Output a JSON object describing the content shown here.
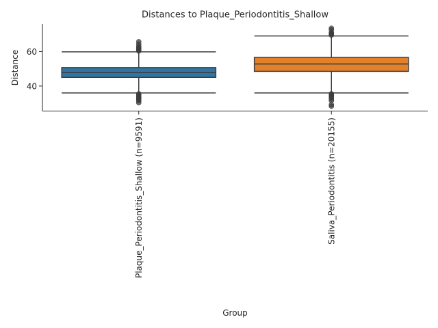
{
  "chart_data": {
    "type": "box",
    "title": "Distances to Plaque_Periodontitis_Shallow",
    "xlabel": "Group",
    "ylabel": "Distance",
    "ylim": [
      25.5,
      76
    ],
    "yticks": [
      40,
      60
    ],
    "grid": false,
    "categories": [
      "Plaque_Periodontitis_Shallow (n=9591)",
      "Saliva_Periodontitis (n=20155)"
    ],
    "boxes": [
      {
        "name": "Plaque_Periodontitis_Shallow (n=9591)",
        "color": "#3274a1",
        "q1": 45,
        "median": 47.8,
        "q3": 50.7,
        "whisker_low": 36,
        "whisker_high": 59.8,
        "outliers_low": [
          35.5,
          35,
          34.5,
          34,
          33.5,
          33,
          32.5,
          32,
          31.5,
          30.3
        ],
        "outliers_high": [
          60.3,
          60.8,
          61.3,
          61.8,
          62.3,
          63,
          64.3,
          65.7
        ]
      },
      {
        "name": "Saliva_Periodontitis (n=20155)",
        "color": "#e1812c",
        "q1": 48.5,
        "median": 52.8,
        "q3": 56.6,
        "whisker_low": 36,
        "whisker_high": 69,
        "outliers_low": [
          35.5,
          35,
          34.5,
          34,
          33.5,
          32.5,
          31.5,
          29.2,
          28.3
        ],
        "outliers_high": [
          69.5,
          70,
          70.5,
          71,
          72.5,
          73.5
        ]
      }
    ]
  }
}
